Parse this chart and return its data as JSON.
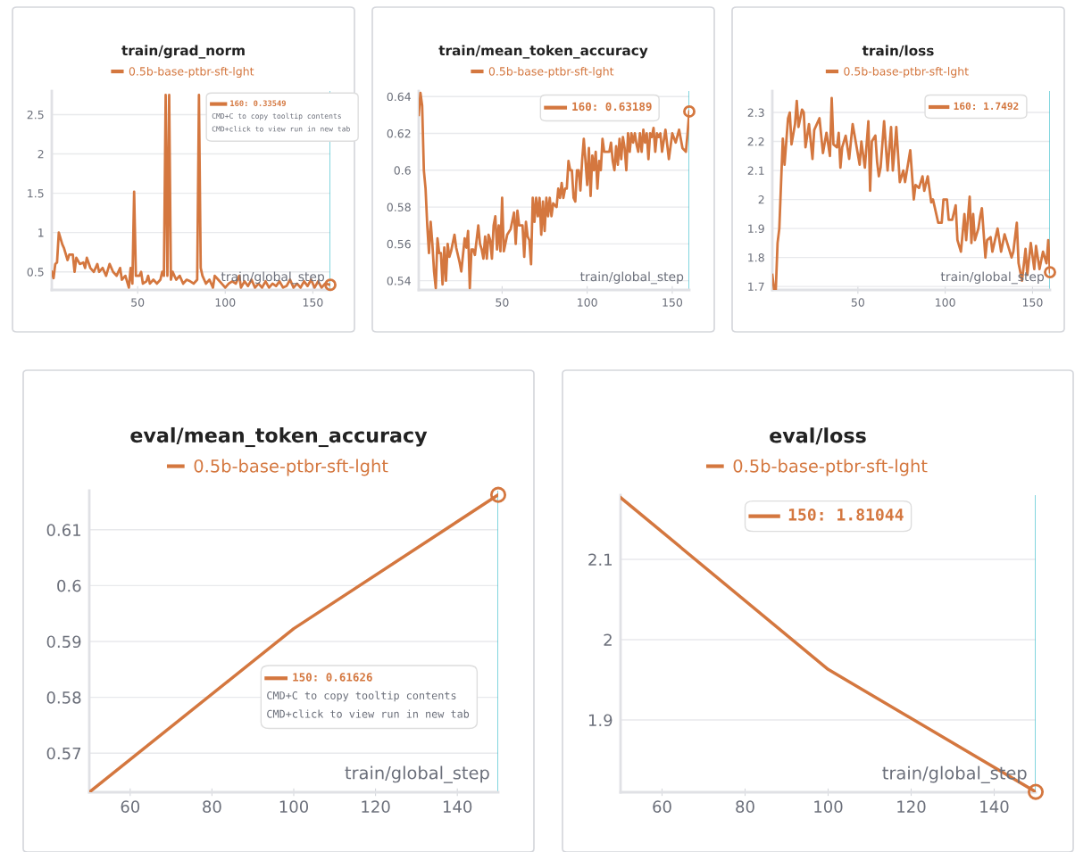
{
  "chart_data": [
    {
      "type": "line",
      "title": "train/grad_norm",
      "xlabel": "train/global_step",
      "legend": "top",
      "grid": "y",
      "xlim": [
        1,
        160
      ],
      "xticks": [
        50,
        100,
        150
      ],
      "ylim": [
        0.27,
        2.8
      ],
      "yticks": [
        0.5,
        1,
        1.5,
        2,
        2.5
      ],
      "series": [
        {
          "name": "0.5b-base-ptbr-sft-lght",
          "color": "#d4773f",
          "x": [
            1,
            2,
            3,
            4,
            5,
            7,
            8,
            10,
            11,
            13,
            14,
            15,
            17,
            19,
            20,
            21,
            23,
            25,
            27,
            28,
            30,
            32,
            34,
            36,
            38,
            40,
            41,
            43,
            45,
            46,
            47,
            48,
            49,
            51,
            52,
            53,
            55,
            56,
            57,
            59,
            61,
            63,
            64,
            65,
            66,
            67,
            68,
            69,
            70,
            72,
            74,
            76,
            78,
            80,
            82,
            84,
            85,
            86,
            87,
            89,
            91,
            93,
            94,
            96,
            98,
            100,
            102,
            104,
            106,
            108,
            109,
            111,
            113,
            115,
            117,
            119,
            121,
            123,
            125,
            127,
            129,
            131,
            133,
            135,
            137,
            139,
            141,
            143,
            145,
            147,
            149,
            151,
            153,
            155,
            157,
            160
          ],
          "values": [
            0.5,
            0.42,
            0.6,
            0.62,
            1.0,
            0.85,
            0.8,
            0.65,
            0.72,
            0.72,
            0.5,
            0.68,
            0.6,
            0.62,
            0.55,
            0.68,
            0.55,
            0.5,
            0.6,
            0.5,
            0.55,
            0.45,
            0.6,
            0.5,
            0.45,
            0.55,
            0.4,
            0.45,
            0.3,
            0.55,
            0.35,
            1.52,
            0.45,
            0.45,
            0.5,
            0.35,
            0.38,
            0.45,
            0.35,
            0.4,
            0.35,
            0.4,
            0.5,
            0.45,
            2.75,
            0.45,
            2.75,
            0.4,
            0.5,
            0.4,
            0.45,
            0.35,
            0.4,
            0.38,
            0.35,
            0.4,
            2.75,
            0.55,
            0.45,
            0.35,
            0.4,
            0.3,
            0.45,
            0.4,
            0.35,
            0.3,
            0.35,
            0.38,
            0.35,
            0.45,
            0.3,
            0.38,
            0.32,
            0.4,
            0.3,
            0.35,
            0.3,
            0.38,
            0.3,
            0.35,
            0.32,
            0.38,
            0.3,
            0.32,
            0.4,
            0.3,
            0.35,
            0.3,
            0.38,
            0.32,
            0.4,
            0.3,
            0.38,
            0.3,
            0.35,
            0.33549
          ]
        }
      ],
      "ref_lines": [
        {
          "axis": "x",
          "value": 160,
          "color": "#4cc3d0"
        }
      ],
      "annotations": [
        "160: 0.33549",
        "CMD+C to copy tooltip contents",
        "CMD+click to view run in new tab"
      ]
    },
    {
      "type": "line",
      "title": "train/mean_token_accuracy",
      "xlabel": "train/global_step",
      "legend": "top",
      "grid": "y",
      "xlim": [
        1,
        160
      ],
      "xticks": [
        50,
        100,
        150
      ],
      "ylim": [
        0.535,
        0.643
      ],
      "yticks": [
        0.54,
        0.56,
        0.58,
        0.6,
        0.62,
        0.64
      ],
      "series": [
        {
          "name": "0.5b-base-ptbr-sft-lght",
          "color": "#d4773f",
          "x": [
            1,
            2,
            3,
            4,
            5,
            6,
            7,
            8,
            9,
            10,
            11,
            12,
            13,
            14,
            15,
            16,
            17,
            18,
            19,
            20,
            22,
            23,
            25,
            26,
            28,
            29,
            30,
            31,
            32,
            33,
            34,
            36,
            37,
            38,
            39,
            40,
            41,
            42,
            43,
            44,
            45,
            46,
            47,
            48,
            49,
            50,
            51,
            53,
            55,
            57,
            58,
            59,
            60,
            62,
            63,
            64,
            65,
            66,
            67,
            68,
            69,
            70,
            71,
            72,
            73,
            74,
            75,
            76,
            77,
            78,
            79,
            80,
            82,
            83,
            84,
            85,
            86,
            87,
            88,
            89,
            90,
            91,
            92,
            93,
            94,
            95,
            96,
            97,
            98,
            99,
            100,
            101,
            102,
            103,
            104,
            105,
            106,
            107,
            108,
            109,
            110,
            112,
            113,
            114,
            115,
            116,
            117,
            118,
            119,
            120,
            121,
            122,
            123,
            124,
            125,
            126,
            127,
            128,
            129,
            130,
            131,
            132,
            133,
            134,
            135,
            136,
            137,
            138,
            139,
            140,
            141,
            142,
            143,
            144,
            146,
            148,
            150,
            152,
            154,
            156,
            158,
            159,
            160
          ],
          "values": [
            0.63,
            0.642,
            0.635,
            0.6,
            0.59,
            0.57,
            0.555,
            0.572,
            0.56,
            0.545,
            0.536,
            0.563,
            0.555,
            0.555,
            0.538,
            0.558,
            0.54,
            0.56,
            0.553,
            0.556,
            0.565,
            0.558,
            0.55,
            0.545,
            0.563,
            0.558,
            0.567,
            0.536,
            0.557,
            0.557,
            0.554,
            0.57,
            0.56,
            0.557,
            0.552,
            0.564,
            0.552,
            0.565,
            0.562,
            0.552,
            0.57,
            0.575,
            0.557,
            0.57,
            0.556,
            0.585,
            0.556,
            0.565,
            0.568,
            0.577,
            0.56,
            0.578,
            0.57,
            0.57,
            0.553,
            0.572,
            0.564,
            0.562,
            0.549,
            0.585,
            0.572,
            0.585,
            0.575,
            0.585,
            0.565,
            0.583,
            0.567,
            0.585,
            0.575,
            0.585,
            0.575,
            0.582,
            0.58,
            0.59,
            0.585,
            0.593,
            0.585,
            0.59,
            0.59,
            0.605,
            0.6,
            0.6,
            0.585,
            0.583,
            0.6,
            0.6,
            0.589,
            0.605,
            0.617,
            0.605,
            0.592,
            0.612,
            0.586,
            0.608,
            0.6,
            0.61,
            0.59,
            0.605,
            0.6,
            0.617,
            0.61,
            0.61,
            0.61,
            0.615,
            0.605,
            0.6,
            0.613,
            0.603,
            0.617,
            0.606,
            0.618,
            0.612,
            0.6,
            0.62,
            0.61,
            0.62,
            0.615,
            0.62,
            0.614,
            0.61,
            0.62,
            0.61,
            0.622,
            0.615,
            0.62,
            0.606,
            0.62,
            0.618,
            0.623,
            0.61,
            0.62,
            0.618,
            0.62,
            0.61,
            0.622,
            0.606,
            0.62,
            0.615,
            0.622,
            0.612,
            0.61,
            0.62,
            0.63189
          ]
        }
      ],
      "ref_lines": [
        {
          "axis": "x",
          "value": 160,
          "color": "#4cc3d0"
        }
      ],
      "annotations": [
        "160: 0.63189"
      ]
    },
    {
      "type": "line",
      "title": "train/loss",
      "xlabel": "train/global_step",
      "legend": "top",
      "grid": "y",
      "xlim": [
        1,
        160
      ],
      "xticks": [
        50,
        100,
        150
      ],
      "ylim": [
        1.688,
        2.374
      ],
      "yticks": [
        1.7,
        1.8,
        1.9,
        2,
        2.1,
        2.2,
        2.3
      ],
      "series": [
        {
          "name": "0.5b-base-ptbr-sft-lght",
          "color": "#d4773f",
          "x": [
            1,
            2,
            3,
            4,
            5,
            7,
            8,
            10,
            11,
            12,
            14,
            15,
            16,
            18,
            19,
            20,
            22,
            23,
            24,
            25,
            28,
            30,
            32,
            34,
            35,
            36,
            38,
            39,
            40,
            41,
            43,
            45,
            47,
            49,
            51,
            52,
            54,
            56,
            57,
            58,
            60,
            61,
            62,
            63,
            65,
            67,
            69,
            70,
            71,
            72,
            74,
            76,
            77,
            80,
            82,
            83,
            85,
            87,
            88,
            90,
            92,
            93,
            96,
            98,
            99,
            101,
            102,
            104,
            106,
            107,
            109,
            111,
            112,
            114,
            115,
            116,
            117,
            119,
            120,
            121,
            123,
            124,
            126,
            127,
            130,
            132,
            134,
            136,
            138,
            139,
            141,
            142,
            144,
            146,
            147,
            149,
            151,
            152,
            154,
            156,
            158,
            159,
            160
          ],
          "values": [
            1.74,
            1.69,
            1.69,
            1.85,
            1.9,
            2.21,
            2.12,
            2.28,
            2.3,
            2.19,
            2.26,
            2.34,
            2.25,
            2.31,
            2.3,
            2.18,
            2.26,
            2.2,
            2.14,
            2.24,
            2.28,
            2.16,
            2.23,
            2.15,
            2.35,
            2.19,
            2.18,
            2.23,
            2.11,
            2.18,
            2.22,
            2.14,
            2.26,
            2.19,
            2.12,
            2.2,
            2.11,
            2.27,
            2.03,
            2.2,
            2.22,
            2.13,
            2.08,
            2.11,
            2.27,
            2.1,
            2.25,
            2.1,
            2.17,
            2.25,
            2.06,
            2.1,
            2.06,
            2.17,
            2.0,
            2.05,
            2.04,
            2.08,
            2.03,
            2.08,
            1.99,
            2.0,
            1.92,
            1.92,
            2.0,
            2.0,
            1.93,
            1.93,
            1.98,
            1.86,
            1.82,
            1.95,
            1.86,
            2.01,
            1.85,
            1.95,
            1.86,
            1.9,
            1.94,
            1.97,
            1.8,
            1.86,
            1.87,
            1.82,
            1.9,
            1.82,
            1.88,
            1.84,
            1.8,
            1.82,
            1.92,
            1.78,
            1.72,
            1.83,
            1.74,
            1.85,
            1.76,
            1.84,
            1.76,
            1.82,
            1.78,
            1.86,
            1.7492
          ]
        }
      ],
      "ref_lines": [
        {
          "axis": "x",
          "value": 160,
          "color": "#4cc3d0"
        }
      ],
      "annotations": [
        "160: 1.7492"
      ]
    },
    {
      "type": "line",
      "title": "eval/mean_token_accuracy",
      "xlabel": "train/global_step",
      "legend": "top",
      "grid": "y",
      "xlim": [
        50,
        150
      ],
      "xticks": [
        60,
        80,
        100,
        120,
        140
      ],
      "ylim": [
        0.563,
        0.617
      ],
      "yticks": [
        0.57,
        0.58,
        0.59,
        0.6,
        0.61
      ],
      "series": [
        {
          "name": "0.5b-base-ptbr-sft-lght",
          "color": "#d4773f",
          "x": [
            50,
            100,
            150
          ],
          "values": [
            0.563,
            0.5923,
            0.61626
          ]
        }
      ],
      "ref_lines": [
        {
          "axis": "x",
          "value": 150,
          "color": "#4cc3d0"
        }
      ],
      "annotations": [
        "150: 0.61626",
        "CMD+C to copy tooltip contents",
        "CMD+click to view run in new tab"
      ]
    },
    {
      "type": "line",
      "title": "eval/loss",
      "xlabel": "train/global_step",
      "legend": "top",
      "grid": "y",
      "xlim": [
        50,
        150
      ],
      "xticks": [
        60,
        80,
        100,
        120,
        140
      ],
      "ylim": [
        1.81,
        2.18
      ],
      "yticks": [
        1.9,
        2,
        2.1
      ],
      "series": [
        {
          "name": "0.5b-base-ptbr-sft-lght",
          "color": "#d4773f",
          "x": [
            50,
            100,
            150
          ],
          "values": [
            2.177,
            1.963,
            1.81044
          ]
        }
      ],
      "ref_lines": [
        {
          "axis": "x",
          "value": 150,
          "color": "#4cc3d0"
        }
      ],
      "annotations": [
        "150: 1.81044"
      ]
    }
  ]
}
